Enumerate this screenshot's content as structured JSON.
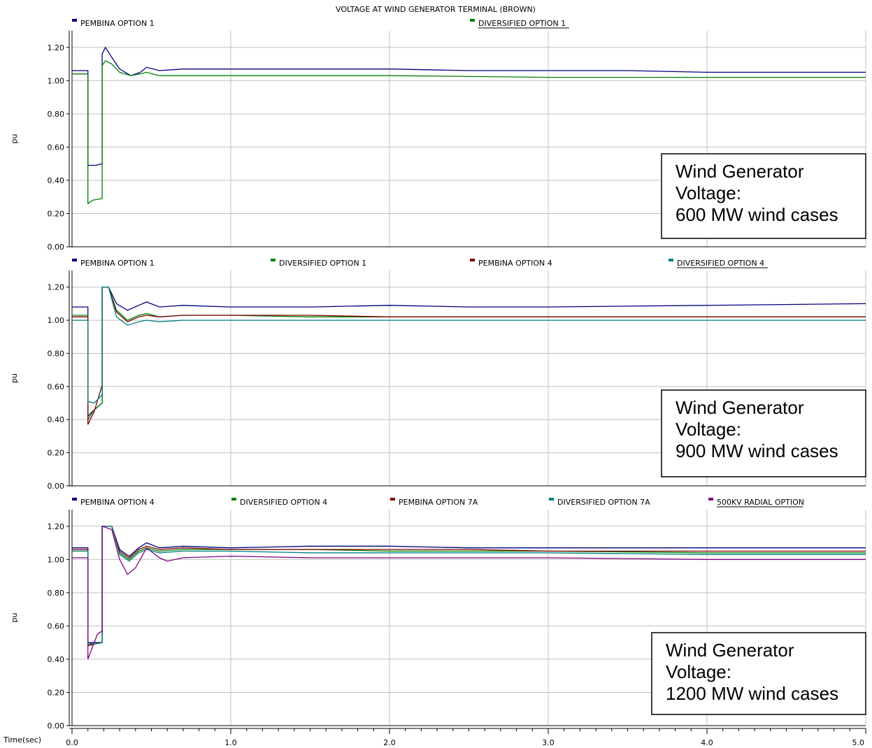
{
  "title": "VOLTAGE AT WIND GENERATOR TERMINAL (BROWN)",
  "x_axis_label": "Time(sec)",
  "x_ticks": [
    "0.0",
    "1.0",
    "2.0",
    "3.0",
    "4.0",
    "5.0"
  ],
  "colors": {
    "pembina_1": "#000080",
    "diversified_1": "#008000",
    "pembina_4": "#800000",
    "diversified_4": "#008080",
    "pembina_7a": "#800000",
    "diversified_7a": "#008080",
    "radial_500kv": "#800080"
  },
  "chart_data": [
    {
      "type": "line",
      "ylabel": "pu",
      "xlim": [
        0,
        5
      ],
      "ylim": [
        0,
        1.3
      ],
      "y_ticks": [
        "0.00",
        "0.20",
        "0.40",
        "0.60",
        "0.80",
        "1.00",
        "1.20"
      ],
      "grid": true,
      "legend": [
        "PEMBINA OPTION 1",
        "DIVERSIFIED OPTION 1"
      ],
      "annotation": [
        "Wind Generator",
        "Voltage:",
        "600 MW wind cases"
      ],
      "series": [
        {
          "name": "PEMBINA OPTION 1",
          "color_key": "pembina_1",
          "points": [
            [
              0,
              1.06
            ],
            [
              0.1,
              1.06
            ],
            [
              0.1,
              0.49
            ],
            [
              0.15,
              0.49
            ],
            [
              0.19,
              0.5
            ],
            [
              0.19,
              1.16
            ],
            [
              0.21,
              1.2
            ],
            [
              0.25,
              1.14
            ],
            [
              0.3,
              1.07
            ],
            [
              0.37,
              1.03
            ],
            [
              0.43,
              1.05
            ],
            [
              0.47,
              1.08
            ],
            [
              0.55,
              1.06
            ],
            [
              0.7,
              1.07
            ],
            [
              1.0,
              1.07
            ],
            [
              1.5,
              1.07
            ],
            [
              2.0,
              1.07
            ],
            [
              2.5,
              1.06
            ],
            [
              3.0,
              1.06
            ],
            [
              3.5,
              1.06
            ],
            [
              4.0,
              1.05
            ],
            [
              5.0,
              1.05
            ]
          ]
        },
        {
          "name": "DIVERSIFIED OPTION 1",
          "color_key": "diversified_1",
          "points": [
            [
              0,
              1.04
            ],
            [
              0.1,
              1.04
            ],
            [
              0.1,
              0.26
            ],
            [
              0.13,
              0.28
            ],
            [
              0.19,
              0.29
            ],
            [
              0.19,
              1.09
            ],
            [
              0.21,
              1.12
            ],
            [
              0.25,
              1.1
            ],
            [
              0.3,
              1.05
            ],
            [
              0.37,
              1.03
            ],
            [
              0.43,
              1.04
            ],
            [
              0.47,
              1.05
            ],
            [
              0.55,
              1.03
            ],
            [
              0.7,
              1.03
            ],
            [
              1.0,
              1.03
            ],
            [
              1.5,
              1.03
            ],
            [
              2.0,
              1.03
            ],
            [
              2.5,
              1.025
            ],
            [
              3.0,
              1.02
            ],
            [
              4.0,
              1.02
            ],
            [
              5.0,
              1.02
            ]
          ]
        }
      ]
    },
    {
      "type": "line",
      "ylabel": "pu",
      "xlim": [
        0,
        5
      ],
      "ylim": [
        0,
        1.3
      ],
      "y_ticks": [
        "0.00",
        "0.20",
        "0.40",
        "0.60",
        "0.80",
        "1.00",
        "1.20"
      ],
      "grid": true,
      "legend": [
        "PEMBINA OPTION 1",
        "DIVERSIFIED OPTION 1",
        "PEMBINA OPTION 4",
        "DIVERSIFIED OPTION 4"
      ],
      "annotation": [
        "Wind Generator",
        "Voltage:",
        "900 MW wind cases"
      ],
      "series": [
        {
          "name": "PEMBINA OPTION 1",
          "color_key": "pembina_1",
          "points": [
            [
              0,
              1.08
            ],
            [
              0.1,
              1.08
            ],
            [
              0.1,
              0.42
            ],
            [
              0.13,
              0.45
            ],
            [
              0.19,
              0.5
            ],
            [
              0.19,
              1.2
            ],
            [
              0.23,
              1.2
            ],
            [
              0.28,
              1.1
            ],
            [
              0.35,
              1.06
            ],
            [
              0.42,
              1.09
            ],
            [
              0.47,
              1.11
            ],
            [
              0.55,
              1.08
            ],
            [
              0.7,
              1.09
            ],
            [
              1.0,
              1.08
            ],
            [
              1.5,
              1.08
            ],
            [
              2.0,
              1.09
            ],
            [
              2.5,
              1.08
            ],
            [
              3.0,
              1.08
            ],
            [
              4.0,
              1.09
            ],
            [
              5.0,
              1.1
            ]
          ]
        },
        {
          "name": "DIVERSIFIED OPTION 1",
          "color_key": "diversified_1",
          "points": [
            [
              0,
              1.03
            ],
            [
              0.1,
              1.03
            ],
            [
              0.1,
              0.4
            ],
            [
              0.14,
              0.46
            ],
            [
              0.19,
              0.5
            ],
            [
              0.19,
              1.2
            ],
            [
              0.23,
              1.2
            ],
            [
              0.28,
              1.06
            ],
            [
              0.35,
              1.0
            ],
            [
              0.42,
              1.03
            ],
            [
              0.47,
              1.04
            ],
            [
              0.55,
              1.02
            ],
            [
              0.7,
              1.03
            ],
            [
              1.0,
              1.03
            ],
            [
              1.5,
              1.02
            ],
            [
              2.0,
              1.02
            ],
            [
              3.0,
              1.02
            ],
            [
              4.0,
              1.02
            ],
            [
              5.0,
              1.02
            ]
          ]
        },
        {
          "name": "PEMBINA OPTION 4",
          "color_key": "pembina_4",
          "points": [
            [
              0,
              1.02
            ],
            [
              0.1,
              1.02
            ],
            [
              0.1,
              0.37
            ],
            [
              0.14,
              0.45
            ],
            [
              0.19,
              0.61
            ],
            [
              0.19,
              1.2
            ],
            [
              0.23,
              1.2
            ],
            [
              0.28,
              1.05
            ],
            [
              0.35,
              0.99
            ],
            [
              0.42,
              1.02
            ],
            [
              0.47,
              1.03
            ],
            [
              0.55,
              1.02
            ],
            [
              0.7,
              1.03
            ],
            [
              1.0,
              1.03
            ],
            [
              1.5,
              1.03
            ],
            [
              2.0,
              1.02
            ],
            [
              3.0,
              1.02
            ],
            [
              4.0,
              1.02
            ],
            [
              5.0,
              1.02
            ]
          ]
        },
        {
          "name": "DIVERSIFIED OPTION 4",
          "color_key": "diversified_4",
          "points": [
            [
              0,
              1.0
            ],
            [
              0.1,
              1.0
            ],
            [
              0.1,
              0.51
            ],
            [
              0.14,
              0.5
            ],
            [
              0.19,
              0.55
            ],
            [
              0.19,
              1.2
            ],
            [
              0.23,
              1.2
            ],
            [
              0.28,
              1.02
            ],
            [
              0.35,
              0.97
            ],
            [
              0.42,
              0.99
            ],
            [
              0.47,
              1.0
            ],
            [
              0.55,
              0.99
            ],
            [
              0.7,
              1.0
            ],
            [
              1.0,
              1.0
            ],
            [
              1.5,
              1.0
            ],
            [
              2.0,
              1.0
            ],
            [
              3.0,
              1.0
            ],
            [
              4.0,
              1.0
            ],
            [
              5.0,
              1.0
            ]
          ]
        }
      ]
    },
    {
      "type": "line",
      "ylabel": "pu",
      "xlim": [
        0,
        5
      ],
      "ylim": [
        0,
        1.3
      ],
      "y_ticks": [
        "0.00",
        "0.20",
        "0.40",
        "0.60",
        "0.80",
        "1.00",
        "1.20"
      ],
      "grid": true,
      "legend": [
        "PEMBINA OPTION 4",
        "DIVERSIFIED OPTION 4",
        "PEMBINA OPTION 7A",
        "DIVERSIFIED OPTION 7A",
        "500KV RADIAL OPTION"
      ],
      "annotation": [
        "Wind Generator",
        "Voltage:",
        "1200 MW wind cases"
      ],
      "series": [
        {
          "name": "PEMBINA OPTION 4",
          "color_key": "pembina_1",
          "points": [
            [
              0,
              1.07
            ],
            [
              0.1,
              1.07
            ],
            [
              0.1,
              0.5
            ],
            [
              0.14,
              0.5
            ],
            [
              0.19,
              0.5
            ],
            [
              0.19,
              1.2
            ],
            [
              0.25,
              1.2
            ],
            [
              0.3,
              1.06
            ],
            [
              0.36,
              1.02
            ],
            [
              0.42,
              1.07
            ],
            [
              0.47,
              1.1
            ],
            [
              0.55,
              1.07
            ],
            [
              0.7,
              1.08
            ],
            [
              1.0,
              1.07
            ],
            [
              1.5,
              1.08
            ],
            [
              2.0,
              1.08
            ],
            [
              2.5,
              1.07
            ],
            [
              3.0,
              1.07
            ],
            [
              4.0,
              1.07
            ],
            [
              5.0,
              1.07
            ]
          ]
        },
        {
          "name": "DIVERSIFIED OPTION 4",
          "color_key": "diversified_1",
          "points": [
            [
              0,
              1.05
            ],
            [
              0.1,
              1.05
            ],
            [
              0.1,
              0.49
            ],
            [
              0.14,
              0.49
            ],
            [
              0.19,
              0.5
            ],
            [
              0.19,
              1.2
            ],
            [
              0.25,
              1.2
            ],
            [
              0.3,
              1.04
            ],
            [
              0.36,
              1.0
            ],
            [
              0.42,
              1.05
            ],
            [
              0.47,
              1.07
            ],
            [
              0.55,
              1.05
            ],
            [
              0.7,
              1.06
            ],
            [
              1.0,
              1.06
            ],
            [
              1.5,
              1.06
            ],
            [
              2.0,
              1.05
            ],
            [
              2.5,
              1.05
            ],
            [
              3.0,
              1.05
            ],
            [
              4.0,
              1.04
            ],
            [
              5.0,
              1.04
            ]
          ]
        },
        {
          "name": "PEMBINA OPTION 7A",
          "color_key": "pembina_7a",
          "points": [
            [
              0,
              1.06
            ],
            [
              0.1,
              1.06
            ],
            [
              0.1,
              0.48
            ],
            [
              0.14,
              0.49
            ],
            [
              0.19,
              0.5
            ],
            [
              0.19,
              1.2
            ],
            [
              0.25,
              1.2
            ],
            [
              0.3,
              1.05
            ],
            [
              0.36,
              1.01
            ],
            [
              0.42,
              1.06
            ],
            [
              0.47,
              1.08
            ],
            [
              0.55,
              1.06
            ],
            [
              0.7,
              1.07
            ],
            [
              1.0,
              1.06
            ],
            [
              1.5,
              1.06
            ],
            [
              2.0,
              1.06
            ],
            [
              2.5,
              1.06
            ],
            [
              3.0,
              1.05
            ],
            [
              4.0,
              1.05
            ],
            [
              5.0,
              1.05
            ]
          ]
        },
        {
          "name": "DIVERSIFIED OPTION 7A",
          "color_key": "diversified_7a",
          "points": [
            [
              0,
              1.05
            ],
            [
              0.1,
              1.05
            ],
            [
              0.1,
              0.5
            ],
            [
              0.14,
              0.49
            ],
            [
              0.19,
              0.5
            ],
            [
              0.19,
              1.2
            ],
            [
              0.25,
              1.2
            ],
            [
              0.3,
              1.03
            ],
            [
              0.36,
              0.99
            ],
            [
              0.42,
              1.04
            ],
            [
              0.47,
              1.06
            ],
            [
              0.55,
              1.04
            ],
            [
              0.7,
              1.05
            ],
            [
              1.0,
              1.05
            ],
            [
              1.5,
              1.04
            ],
            [
              2.0,
              1.04
            ],
            [
              3.0,
              1.04
            ],
            [
              4.0,
              1.03
            ],
            [
              5.0,
              1.03
            ]
          ]
        },
        {
          "name": "500KV RADIAL OPTION",
          "color_key": "radial_500kv",
          "points": [
            [
              0,
              1.01
            ],
            [
              0.1,
              1.01
            ],
            [
              0.1,
              0.4
            ],
            [
              0.12,
              0.45
            ],
            [
              0.16,
              0.55
            ],
            [
              0.19,
              0.57
            ],
            [
              0.19,
              1.2
            ],
            [
              0.25,
              1.18
            ],
            [
              0.3,
              1.0
            ],
            [
              0.35,
              0.91
            ],
            [
              0.4,
              0.95
            ],
            [
              0.47,
              1.07
            ],
            [
              0.55,
              1.01
            ],
            [
              0.6,
              0.99
            ],
            [
              0.7,
              1.01
            ],
            [
              1.0,
              1.02
            ],
            [
              1.5,
              1.01
            ],
            [
              2.0,
              1.01
            ],
            [
              3.0,
              1.01
            ],
            [
              4.0,
              1.0
            ],
            [
              5.0,
              1.0
            ]
          ]
        }
      ]
    }
  ]
}
